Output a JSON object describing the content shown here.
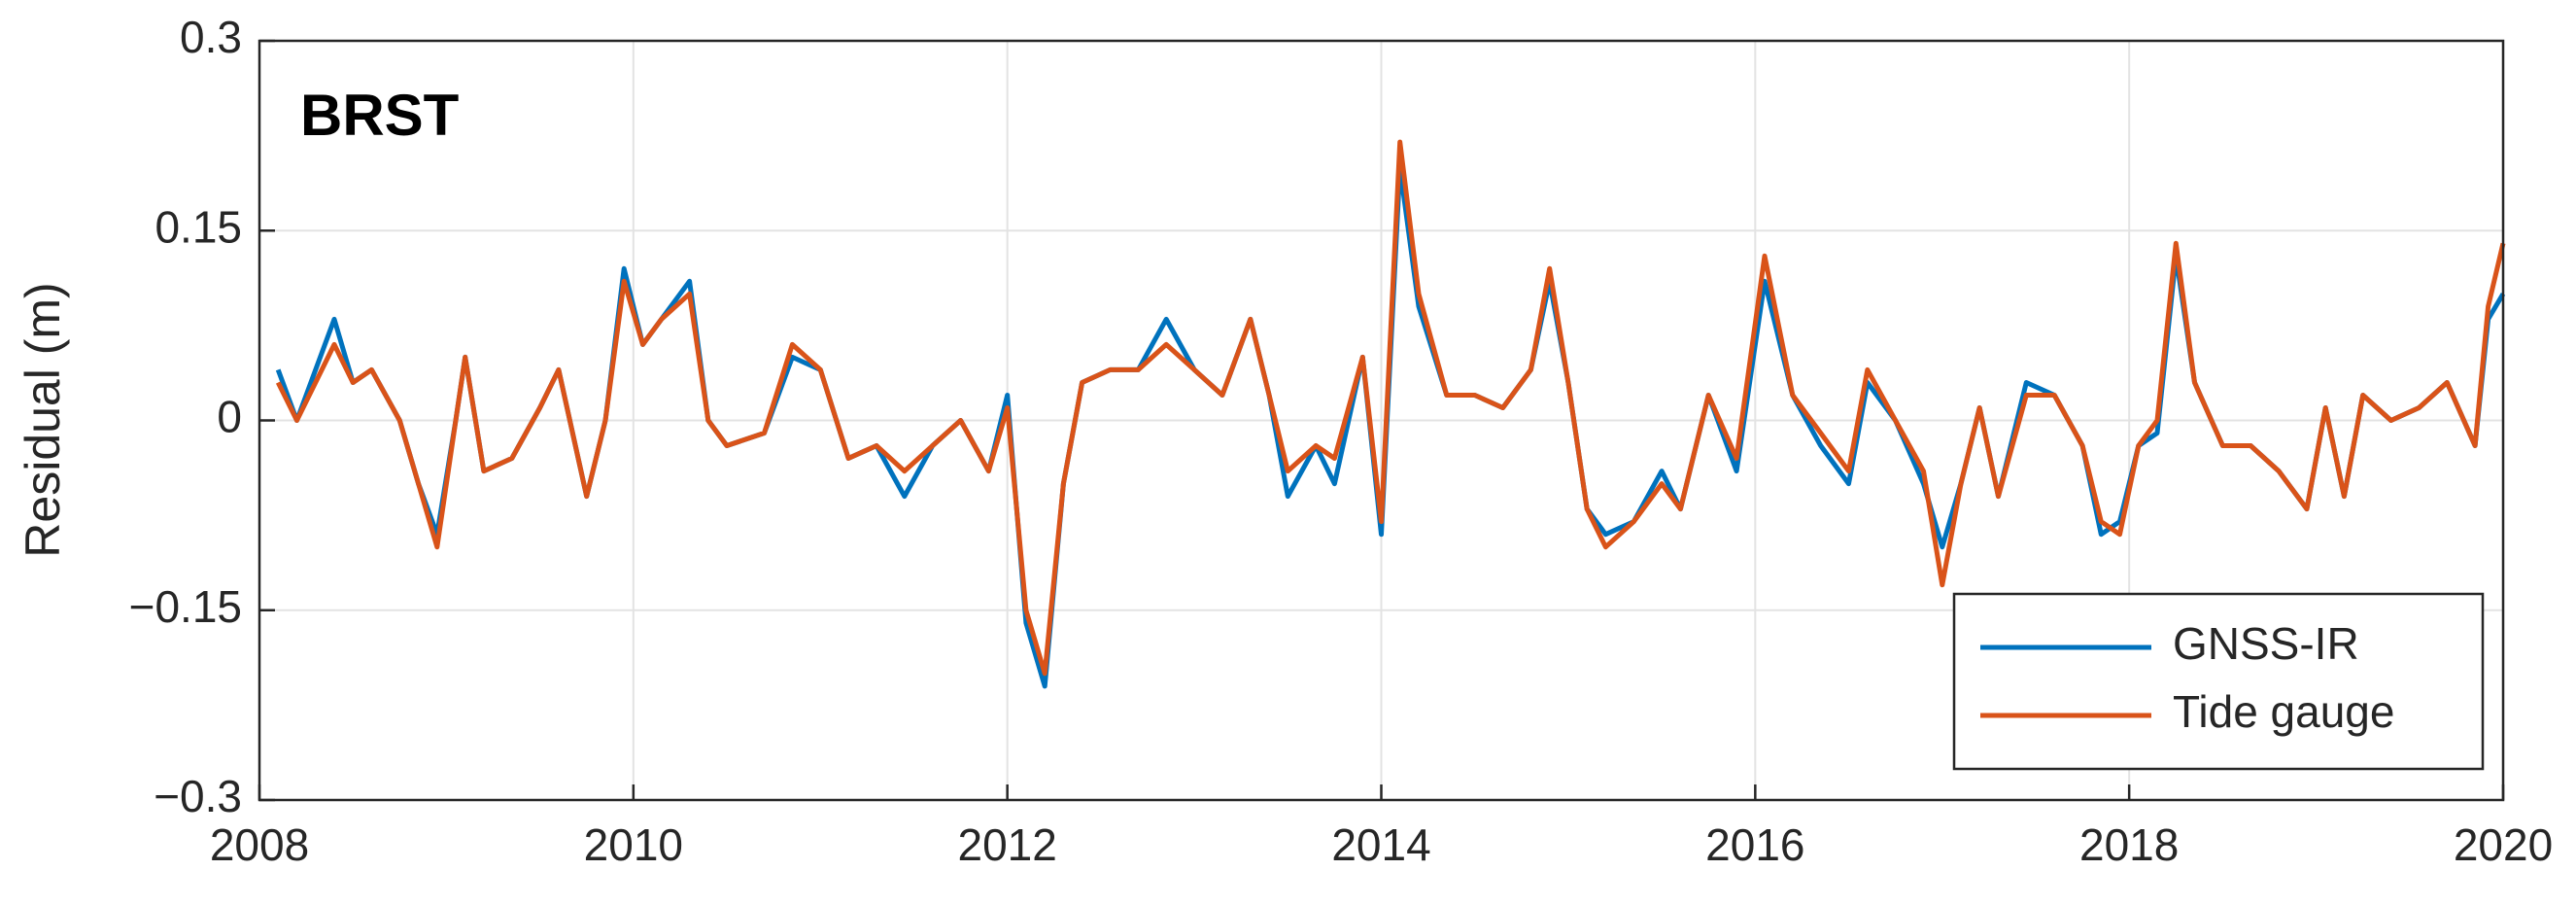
{
  "chart_data": {
    "type": "line",
    "annotation": "BRST",
    "ylabel": "Residual (m)",
    "x": [
      2008.1,
      2008.2,
      2008.4,
      2008.5,
      2008.6,
      2008.75,
      2008.85,
      2008.95,
      2009.05,
      2009.1,
      2009.2,
      2009.35,
      2009.5,
      2009.6,
      2009.75,
      2009.85,
      2009.95,
      2010.05,
      2010.15,
      2010.3,
      2010.4,
      2010.5,
      2010.7,
      2010.85,
      2011.0,
      2011.15,
      2011.3,
      2011.45,
      2011.6,
      2011.75,
      2011.9,
      2012.0,
      2012.1,
      2012.2,
      2012.3,
      2012.4,
      2012.55,
      2012.7,
      2012.85,
      2013.0,
      2013.15,
      2013.3,
      2013.4,
      2013.5,
      2013.65,
      2013.75,
      2013.9,
      2014.0,
      2014.1,
      2014.2,
      2014.35,
      2014.5,
      2014.65,
      2014.8,
      2014.9,
      2015.0,
      2015.1,
      2015.2,
      2015.35,
      2015.5,
      2015.6,
      2015.75,
      2015.9,
      2016.05,
      2016.2,
      2016.35,
      2016.5,
      2016.6,
      2016.75,
      2016.9,
      2017.0,
      2017.1,
      2017.2,
      2017.3,
      2017.45,
      2017.6,
      2017.75,
      2017.85,
      2017.95,
      2018.05,
      2018.15,
      2018.25,
      2018.35,
      2018.5,
      2018.65,
      2018.8,
      2018.95,
      2019.05,
      2019.15,
      2019.25,
      2019.4,
      2019.55,
      2019.7,
      2019.85,
      2019.92,
      2020.0
    ],
    "series": [
      {
        "name": "GNSS-IR",
        "color": "#0072BD",
        "values": [
          0.04,
          0,
          0.08,
          0.03,
          0.04,
          0,
          -0.05,
          -0.09,
          0,
          0.05,
          -0.04,
          -0.03,
          0.01,
          0.04,
          -0.06,
          0,
          0.12,
          0.06,
          0.08,
          0.11,
          0,
          -0.02,
          -0.01,
          0.05,
          0.04,
          -0.03,
          -0.02,
          -0.06,
          -0.02,
          0,
          -0.04,
          0.02,
          -0.16,
          -0.21,
          -0.05,
          0.03,
          0.04,
          0.04,
          0.08,
          0.04,
          0.02,
          0.08,
          0.02,
          -0.06,
          -0.02,
          -0.05,
          0.05,
          -0.09,
          0.2,
          0.09,
          0.02,
          0.02,
          0.01,
          0.04,
          0.11,
          0.03,
          -0.07,
          -0.09,
          -0.08,
          -0.04,
          -0.07,
          0.02,
          -0.04,
          0.11,
          0.02,
          -0.02,
          -0.05,
          0.03,
          0,
          -0.05,
          -0.1,
          -0.05,
          0.01,
          -0.06,
          0.03,
          0.02,
          -0.02,
          -0.09,
          -0.08,
          -0.02,
          -0.01,
          0.13,
          0.03,
          -0.02,
          -0.02,
          -0.04,
          -0.07,
          0.01,
          -0.06,
          0.02,
          0,
          0.01,
          0.03,
          -0.02,
          0.08,
          0.1
        ]
      },
      {
        "name": "Tide gauge",
        "color": "#D95319",
        "values": [
          0.03,
          0,
          0.06,
          0.03,
          0.04,
          0,
          -0.05,
          -0.1,
          0,
          0.05,
          -0.04,
          -0.03,
          0.01,
          0.04,
          -0.06,
          0,
          0.11,
          0.06,
          0.08,
          0.1,
          0,
          -0.02,
          -0.01,
          0.06,
          0.04,
          -0.03,
          -0.02,
          -0.04,
          -0.02,
          0,
          -0.04,
          0.01,
          -0.15,
          -0.2,
          -0.05,
          0.03,
          0.04,
          0.04,
          0.06,
          0.04,
          0.02,
          0.08,
          0.02,
          -0.04,
          -0.02,
          -0.03,
          0.05,
          -0.08,
          0.22,
          0.1,
          0.02,
          0.02,
          0.01,
          0.04,
          0.12,
          0.03,
          -0.07,
          -0.1,
          -0.08,
          -0.05,
          -0.07,
          0.02,
          -0.03,
          0.13,
          0.02,
          -0.01,
          -0.04,
          0.04,
          0,
          -0.04,
          -0.13,
          -0.05,
          0.01,
          -0.06,
          0.02,
          0.02,
          -0.02,
          -0.08,
          -0.09,
          -0.02,
          0,
          0.14,
          0.03,
          -0.02,
          -0.02,
          -0.04,
          -0.07,
          0.01,
          -0.06,
          0.02,
          0,
          0.01,
          0.03,
          -0.02,
          0.09,
          0.14
        ]
      }
    ],
    "xlim": [
      2008,
      2020
    ],
    "xticks": [
      2008,
      2010,
      2012,
      2014,
      2016,
      2018,
      2020
    ],
    "ylim": [
      -0.3,
      0.3
    ],
    "yticks": [
      {
        "value": -0.3,
        "label": "−0.3"
      },
      {
        "value": -0.15,
        "label": "−0.15"
      },
      0,
      0.15,
      0.3
    ],
    "grid": true,
    "legend": "southeast"
  }
}
